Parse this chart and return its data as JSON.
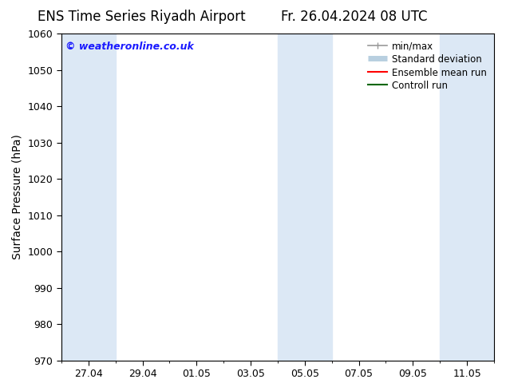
{
  "title_left": "ENS Time Series Riyadh Airport",
  "title_right": "Fr. 26.04.2024 08 UTC",
  "ylabel": "Surface Pressure (hPa)",
  "ylim": [
    970,
    1060
  ],
  "yticks": [
    970,
    980,
    990,
    1000,
    1010,
    1020,
    1030,
    1040,
    1050,
    1060
  ],
  "background_color": "#ffffff",
  "shaded_color": "#dce8f5",
  "shaded_bands": [
    {
      "x_start": 0.0,
      "x_end": 2.0
    },
    {
      "x_start": 8.0,
      "x_end": 10.0
    },
    {
      "x_start": 14.0,
      "x_end": 16.0
    }
  ],
  "xtick_positions": [
    1,
    3,
    5,
    7,
    9,
    11,
    13,
    15
  ],
  "xtick_labels": [
    "27.04",
    "29.04",
    "01.05",
    "03.05",
    "05.05",
    "07.05",
    "09.05",
    "11.05"
  ],
  "xlim": [
    0,
    16
  ],
  "watermark_text": "© weatheronline.co.uk",
  "watermark_color": "#1a1aff",
  "legend_items": [
    {
      "label": "min/max",
      "color": "#999999",
      "lw": 1.2
    },
    {
      "label": "Standard deviation",
      "color": "#b8cfe0",
      "lw": 5
    },
    {
      "label": "Ensemble mean run",
      "color": "#ff0000",
      "lw": 1.5
    },
    {
      "label": "Controll run",
      "color": "#006600",
      "lw": 1.5
    }
  ],
  "title_fontsize": 12,
  "axis_fontsize": 10,
  "tick_fontsize": 9,
  "legend_fontsize": 8.5
}
